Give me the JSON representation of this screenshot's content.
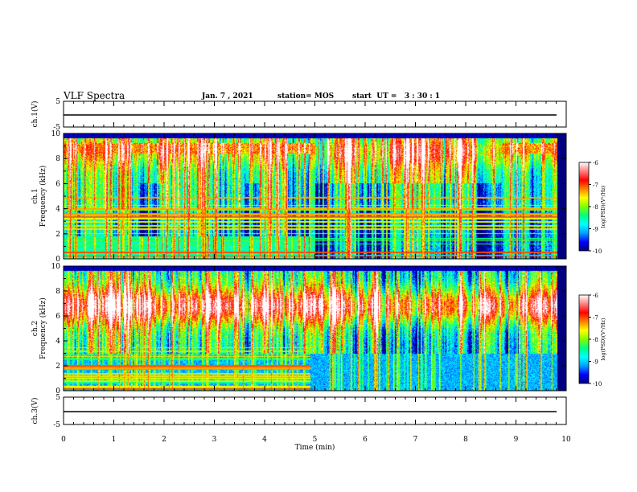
{
  "header": {
    "title": "VLF Spectra",
    "date": "Jan. 7 , 2021",
    "station": "station= MOS",
    "start": "start  UT =   3 : 30 : 1"
  },
  "chart_data": {
    "type": "heatmap",
    "xlabel": "Time  (min)",
    "xlim": [
      0,
      10
    ],
    "x_ticks": [
      "0",
      "1",
      "2",
      "3",
      "4",
      "5",
      "6",
      "7",
      "8",
      "9",
      "10"
    ],
    "panels": [
      {
        "name": "ch.1 waveform",
        "ylabel": "ch.1(V)",
        "ylim": [
          -5,
          5
        ],
        "y_ticks": [
          "5",
          "-5"
        ],
        "trace_level": 0
      },
      {
        "name": "ch.1 spectrogram",
        "ylabel": "ch.1",
        "ylabel2": "Frequency  (kHz)",
        "ylim": [
          0,
          10
        ],
        "y_ticks": [
          "0",
          "2",
          "4",
          "6",
          "8",
          "10"
        ],
        "data_end_min": 9.8,
        "colorbar": {
          "label": "log(PSD)(V²/Hz)",
          "range": [
            -10,
            -6
          ],
          "ticks": [
            "-6",
            "-7",
            "-8",
            "-9",
            "-10"
          ]
        },
        "quiet_intervals_min": [
          [
            1.5,
            2.0
          ],
          [
            3.6,
            3.9
          ],
          [
            5.0,
            8.7
          ]
        ],
        "hiss_band_khz": [
          4,
          10
        ]
      },
      {
        "name": "ch.2 spectrogram",
        "ylabel": "ch.2",
        "ylabel2": "Frequency  (kHz)",
        "ylim": [
          0,
          10
        ],
        "y_ticks": [
          "0",
          "2",
          "4",
          "6",
          "8",
          "10"
        ],
        "data_end_min": 9.8,
        "colorbar": {
          "label": "log(PSD)(V²/Hz)",
          "range": [
            -10,
            -6
          ],
          "ticks": [
            "-6",
            "-7",
            "-8",
            "-9",
            "-10"
          ]
        },
        "hiss_band_khz": [
          5,
          8.5
        ]
      },
      {
        "name": "ch.3 waveform",
        "ylabel": "ch.3(V)",
        "ylim": [
          -5,
          5
        ],
        "y_ticks": [
          "5",
          "-5"
        ],
        "trace_level": 0
      }
    ],
    "colormap": [
      "#000080",
      "#0000ff",
      "#00a0ff",
      "#00ffff",
      "#00ff80",
      "#80ff00",
      "#ffff00",
      "#ff8000",
      "#ff0000",
      "#ff8080",
      "#ffffff"
    ]
  }
}
